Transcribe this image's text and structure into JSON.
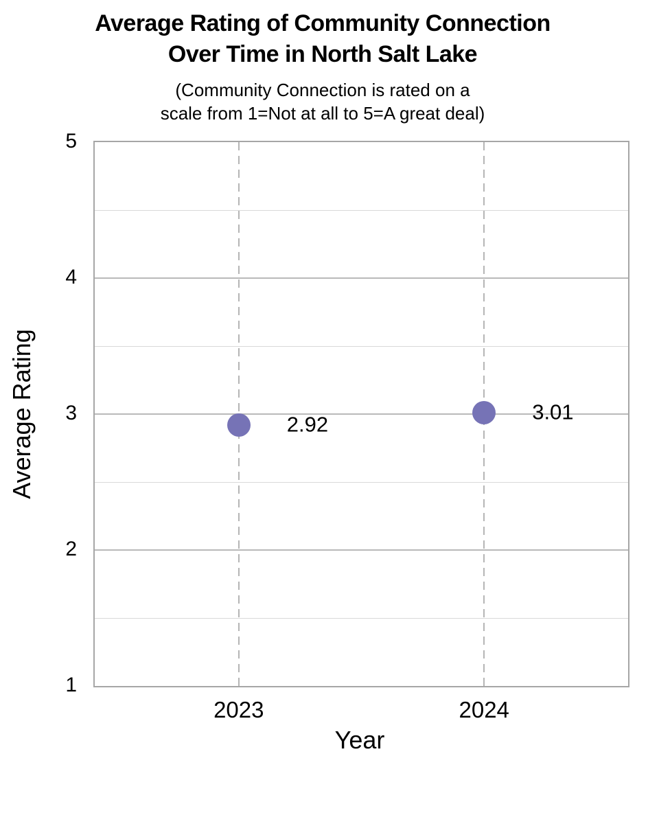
{
  "chart_data": {
    "type": "scatter",
    "title": "Average Rating of Community Connection Over Time in North Salt Lake",
    "title_lines": [
      "Average Rating of Community Connection",
      "Over Time in North Salt Lake"
    ],
    "subtitle_lines": [
      "(Community Connection is rated on a",
      "scale from 1=Not at all to 5=A great deal)"
    ],
    "xlabel": "Year",
    "ylabel": "Average Rating",
    "categories": [
      "2023",
      "2024"
    ],
    "values": [
      2.92,
      3.01
    ],
    "point_labels": [
      "2.92",
      "3.01"
    ],
    "ylim": [
      1,
      5
    ],
    "y_major_step": 1,
    "y_minor_step": 0.5,
    "grid": true,
    "legend_position": "none",
    "colors": {
      "point": "#7673b6",
      "plot_border": "#a6a6a6",
      "major_grid": "#b9b9b9",
      "minor_grid": "#d9d9d9",
      "dashed_guide": "#b5b5b5",
      "text": "#000000"
    }
  }
}
